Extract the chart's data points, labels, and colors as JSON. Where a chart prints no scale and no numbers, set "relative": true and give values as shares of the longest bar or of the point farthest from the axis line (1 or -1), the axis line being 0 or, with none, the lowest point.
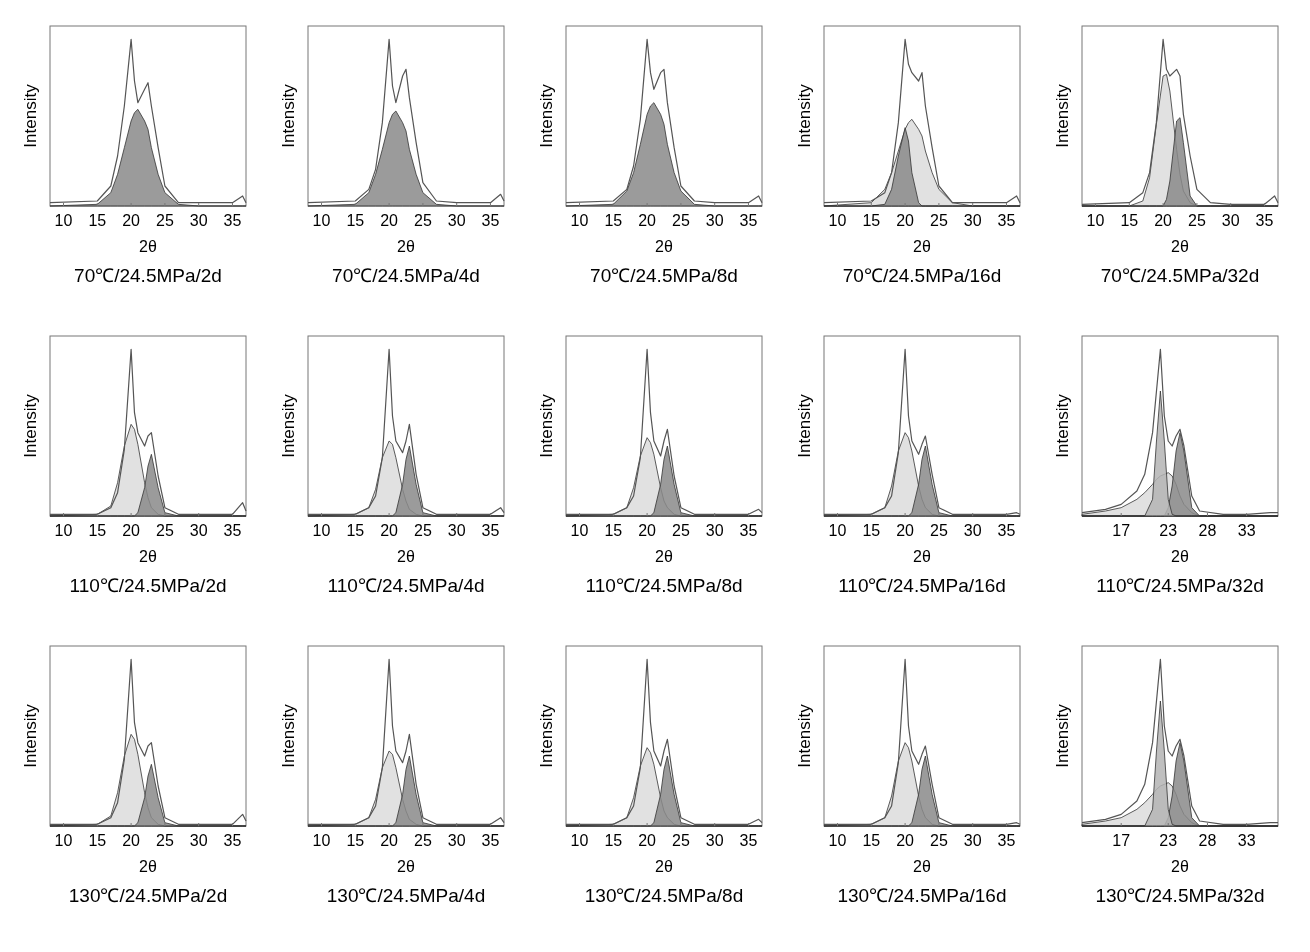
{
  "chart_data": [
    {
      "type": "line",
      "relative": true,
      "title": "70℃/24.5MPa/2d",
      "xlabel": "2θ",
      "ylabel": "Intensity",
      "xlim": [
        8,
        37
      ],
      "xticks": [
        10,
        15,
        20,
        25,
        30,
        35
      ],
      "x": [
        8,
        15,
        17,
        18,
        19,
        20,
        20.5,
        21,
        22,
        22.5,
        23,
        24,
        25,
        27,
        30,
        35,
        36.5,
        37
      ],
      "series": [
        {
          "type": "area",
          "color": "#8a8a8a",
          "values": [
            0,
            0.01,
            0.08,
            0.19,
            0.35,
            0.51,
            0.56,
            0.58,
            0.51,
            0.46,
            0.35,
            0.19,
            0.08,
            0.01,
            0,
            0,
            0,
            0
          ]
        },
        {
          "color": "#555555",
          "values": [
            0.02,
            0.03,
            0.12,
            0.3,
            0.6,
            1.0,
            0.75,
            0.62,
            0.7,
            0.74,
            0.6,
            0.35,
            0.12,
            0.02,
            0.02,
            0.02,
            0.06,
            0.02
          ]
        }
      ]
    },
    {
      "type": "line",
      "relative": true,
      "title": "70℃/24.5MPa/4d",
      "xlabel": "2θ",
      "ylabel": "Intensity",
      "xlim": [
        8,
        37
      ],
      "xticks": [
        10,
        15,
        20,
        25,
        30,
        35
      ],
      "x": [
        8,
        15,
        17,
        18,
        19,
        20,
        20.5,
        21,
        22,
        22.5,
        23,
        24,
        25,
        27,
        30,
        35,
        36.5,
        37
      ],
      "series": [
        {
          "type": "area",
          "color": "#8a8a8a",
          "values": [
            0,
            0.01,
            0.08,
            0.19,
            0.34,
            0.5,
            0.55,
            0.57,
            0.5,
            0.45,
            0.34,
            0.19,
            0.08,
            0.01,
            0,
            0,
            0,
            0
          ]
        },
        {
          "color": "#555555",
          "values": [
            0.02,
            0.03,
            0.1,
            0.22,
            0.5,
            1.0,
            0.72,
            0.62,
            0.78,
            0.82,
            0.65,
            0.38,
            0.14,
            0.03,
            0.02,
            0.02,
            0.07,
            0.03
          ]
        }
      ]
    },
    {
      "type": "line",
      "relative": true,
      "title": "70℃/24.5MPa/8d",
      "xlabel": "2θ",
      "ylabel": "Intensity",
      "xlim": [
        8,
        37
      ],
      "xticks": [
        10,
        15,
        20,
        25,
        30,
        35
      ],
      "x": [
        8,
        15,
        17,
        18,
        19,
        20,
        20.5,
        21,
        22,
        22.5,
        23,
        24,
        25,
        27,
        30,
        35,
        36.5,
        37
      ],
      "series": [
        {
          "type": "area",
          "color": "#8a8a8a",
          "values": [
            0,
            0.01,
            0.09,
            0.2,
            0.37,
            0.55,
            0.6,
            0.62,
            0.55,
            0.49,
            0.37,
            0.2,
            0.09,
            0.01,
            0,
            0,
            0,
            0
          ]
        },
        {
          "color": "#555555",
          "values": [
            0.02,
            0.03,
            0.1,
            0.24,
            0.52,
            1.0,
            0.8,
            0.7,
            0.8,
            0.82,
            0.62,
            0.35,
            0.12,
            0.03,
            0.02,
            0.02,
            0.06,
            0.02
          ]
        }
      ]
    },
    {
      "type": "line",
      "relative": true,
      "title": "70℃/24.5MPa/16d",
      "xlabel": "2θ",
      "ylabel": "Intensity",
      "xlim": [
        8,
        37
      ],
      "xticks": [
        10,
        15,
        20,
        25,
        30,
        35
      ],
      "x": [
        8,
        15,
        17,
        18,
        19,
        20,
        20.5,
        21,
        22,
        22.5,
        23,
        24,
        25,
        27,
        30,
        35,
        36.5,
        37
      ],
      "series": [
        {
          "type": "area",
          "color": "#dcdcdc",
          "values": [
            0,
            0.02,
            0.1,
            0.2,
            0.33,
            0.46,
            0.5,
            0.52,
            0.46,
            0.42,
            0.33,
            0.2,
            0.1,
            0.02,
            0,
            0,
            0,
            0
          ]
        },
        {
          "type": "area",
          "color": "#8a8a8a",
          "values": [
            0,
            0,
            0.01,
            0.1,
            0.3,
            0.47,
            0.39,
            0.2,
            0.02,
            0,
            0,
            0,
            0,
            0,
            0,
            0,
            0,
            0
          ]
        },
        {
          "color": "#555555",
          "values": [
            0.02,
            0.03,
            0.08,
            0.2,
            0.5,
            1.0,
            0.85,
            0.8,
            0.75,
            0.8,
            0.6,
            0.35,
            0.12,
            0.02,
            0.02,
            0.02,
            0.06,
            0.02
          ]
        }
      ]
    },
    {
      "type": "line",
      "relative": true,
      "title": "70℃/24.5MPa/32d",
      "xlabel": "2θ",
      "ylabel": "Intensity",
      "xlim": [
        8,
        37
      ],
      "xticks": [
        10,
        15,
        20,
        25,
        30,
        35
      ],
      "x": [
        8,
        15,
        17,
        18,
        19,
        20,
        20.5,
        21,
        22,
        22.5,
        23,
        24,
        25,
        27,
        30,
        35,
        36.5,
        37
      ],
      "series": [
        {
          "type": "area",
          "color": "#dcdcdc",
          "values": [
            0,
            0,
            0.03,
            0.17,
            0.49,
            0.78,
            0.79,
            0.69,
            0.34,
            0.19,
            0.09,
            0.02,
            0,
            0,
            0,
            0,
            0,
            0
          ]
        },
        {
          "type": "area",
          "color": "#8a8a8a",
          "values": [
            0,
            0,
            0,
            0,
            0,
            0,
            0.04,
            0.15,
            0.51,
            0.53,
            0.38,
            0.06,
            0,
            0,
            0,
            0,
            0,
            0
          ]
        },
        {
          "color": "#555555",
          "values": [
            0.01,
            0.02,
            0.08,
            0.2,
            0.5,
            1.0,
            0.82,
            0.78,
            0.82,
            0.78,
            0.55,
            0.3,
            0.1,
            0.02,
            0.01,
            0.01,
            0.06,
            0.02
          ]
        }
      ]
    },
    {
      "type": "line",
      "relative": true,
      "title": "110℃/24.5MPa/2d",
      "xlabel": "2θ",
      "ylabel": "Intensity",
      "xlim": [
        8,
        37
      ],
      "xticks": [
        10,
        15,
        20,
        25,
        30,
        35
      ],
      "x": [
        8,
        15,
        17,
        18,
        19,
        20,
        20.5,
        21,
        22,
        22.5,
        23,
        24,
        25,
        27,
        30,
        35,
        36.5,
        37
      ],
      "series": [
        {
          "type": "area",
          "color": "#dcdcdc",
          "values": [
            0,
            0.01,
            0.06,
            0.2,
            0.42,
            0.55,
            0.52,
            0.43,
            0.2,
            0.11,
            0.05,
            0.01,
            0,
            0,
            0,
            0,
            0,
            0
          ]
        },
        {
          "type": "area",
          "color": "#8a8a8a",
          "values": [
            0,
            0,
            0,
            0,
            0,
            0,
            0,
            0.02,
            0.17,
            0.3,
            0.37,
            0.17,
            0.02,
            0,
            0,
            0,
            0,
            0
          ]
        },
        {
          "color": "#555555",
          "values": [
            0.01,
            0.01,
            0.05,
            0.14,
            0.4,
            1.0,
            0.62,
            0.5,
            0.42,
            0.48,
            0.5,
            0.24,
            0.05,
            0.01,
            0.01,
            0.01,
            0.08,
            0.03
          ]
        }
      ]
    },
    {
      "type": "line",
      "relative": true,
      "title": "110℃/24.5MPa/4d",
      "xlabel": "2θ",
      "ylabel": "Intensity",
      "xlim": [
        8,
        37
      ],
      "xticks": [
        10,
        15,
        20,
        25,
        30,
        35
      ],
      "x": [
        8,
        15,
        17,
        18,
        19,
        20,
        20.5,
        21,
        22,
        22.5,
        23,
        24,
        25,
        27,
        30,
        35,
        36.5,
        37
      ],
      "series": [
        {
          "type": "area",
          "color": "#dcdcdc",
          "values": [
            0,
            0.01,
            0.05,
            0.16,
            0.35,
            0.45,
            0.43,
            0.35,
            0.16,
            0.09,
            0.04,
            0.01,
            0,
            0,
            0,
            0,
            0,
            0
          ]
        },
        {
          "type": "area",
          "color": "#8a8a8a",
          "values": [
            0,
            0,
            0,
            0,
            0,
            0,
            0,
            0.02,
            0.19,
            0.34,
            0.42,
            0.19,
            0.02,
            0,
            0,
            0,
            0,
            0
          ]
        },
        {
          "color": "#555555",
          "values": [
            0.01,
            0.01,
            0.05,
            0.12,
            0.35,
            1.0,
            0.6,
            0.45,
            0.38,
            0.45,
            0.55,
            0.25,
            0.05,
            0.01,
            0.01,
            0.01,
            0.05,
            0.02
          ]
        }
      ]
    },
    {
      "type": "line",
      "relative": true,
      "title": "110℃/24.5MPa/8d",
      "xlabel": "2θ",
      "ylabel": "Intensity",
      "xlim": [
        8,
        37
      ],
      "xticks": [
        10,
        15,
        20,
        25,
        30,
        35
      ],
      "x": [
        8,
        15,
        17,
        18,
        19,
        20,
        20.5,
        21,
        22,
        22.5,
        23,
        24,
        25,
        27,
        30,
        35,
        36.5,
        37
      ],
      "series": [
        {
          "type": "area",
          "color": "#dcdcdc",
          "values": [
            0,
            0.01,
            0.05,
            0.17,
            0.36,
            0.47,
            0.44,
            0.37,
            0.17,
            0.09,
            0.05,
            0.01,
            0,
            0,
            0,
            0,
            0,
            0
          ]
        },
        {
          "type": "area",
          "color": "#8a8a8a",
          "values": [
            0,
            0,
            0,
            0,
            0,
            0,
            0,
            0.02,
            0.19,
            0.34,
            0.42,
            0.19,
            0.02,
            0,
            0,
            0,
            0,
            0
          ]
        },
        {
          "color": "#555555",
          "values": [
            0.01,
            0.01,
            0.05,
            0.12,
            0.35,
            1.0,
            0.62,
            0.45,
            0.36,
            0.45,
            0.52,
            0.24,
            0.05,
            0.01,
            0.01,
            0.01,
            0.04,
            0.02
          ]
        }
      ]
    },
    {
      "type": "line",
      "relative": true,
      "title": "110℃/24.5MPa/16d",
      "xlabel": "2θ",
      "ylabel": "Intensity",
      "xlim": [
        8,
        37
      ],
      "xticks": [
        10,
        15,
        20,
        25,
        30,
        35
      ],
      "x": [
        8,
        15,
        17,
        18,
        19,
        20,
        20.5,
        21,
        22,
        22.5,
        23,
        24,
        25,
        27,
        30,
        35,
        36.5,
        37
      ],
      "series": [
        {
          "type": "area",
          "color": "#dcdcdc",
          "values": [
            0,
            0.01,
            0.05,
            0.18,
            0.39,
            0.5,
            0.47,
            0.39,
            0.18,
            0.1,
            0.05,
            0.01,
            0,
            0,
            0,
            0,
            0,
            0
          ]
        },
        {
          "type": "area",
          "color": "#8a8a8a",
          "values": [
            0,
            0,
            0,
            0,
            0,
            0,
            0,
            0.02,
            0.19,
            0.34,
            0.42,
            0.19,
            0.02,
            0,
            0,
            0,
            0,
            0
          ]
        },
        {
          "color": "#555555",
          "values": [
            0.01,
            0.01,
            0.05,
            0.12,
            0.38,
            1.0,
            0.6,
            0.45,
            0.37,
            0.43,
            0.48,
            0.25,
            0.05,
            0.01,
            0.01,
            0.01,
            0.02,
            0.01
          ]
        }
      ]
    },
    {
      "type": "line",
      "relative": true,
      "title": "110℃/24.5MPa/32d",
      "xlabel": "2θ",
      "ylabel": "Intensity",
      "xlim": [
        12,
        37
      ],
      "xticks": [
        17,
        23,
        28,
        33
      ],
      "x": [
        12,
        15,
        17,
        19,
        20,
        21,
        21.5,
        22,
        22.5,
        23,
        23.5,
        24,
        24.5,
        25,
        26,
        27,
        30,
        33,
        36,
        37
      ],
      "series": [
        {
          "type": "area",
          "color": "#dcdcdc",
          "values": [
            0.01,
            0.03,
            0.05,
            0.1,
            0.14,
            0.19,
            0.22,
            0.24,
            0.25,
            0.26,
            0.24,
            0.19,
            0.12,
            0.07,
            0.02,
            0,
            0,
            0,
            0,
            0
          ]
        },
        {
          "type": "area",
          "color": "#8a8a8a",
          "values": [
            0,
            0,
            0,
            0,
            0,
            0,
            0,
            0,
            0,
            0.05,
            0.18,
            0.39,
            0.5,
            0.39,
            0.05,
            0,
            0,
            0,
            0,
            0
          ]
        },
        {
          "type": "area",
          "color": "#b4b4b4",
          "values": [
            0,
            0,
            0,
            0,
            0,
            0.1,
            0.45,
            0.75,
            0.45,
            0.1,
            0.01,
            0,
            0,
            0,
            0,
            0,
            0,
            0,
            0,
            0
          ]
        },
        {
          "color": "#555555",
          "values": [
            0.02,
            0.04,
            0.07,
            0.15,
            0.25,
            0.5,
            0.75,
            1.0,
            0.6,
            0.45,
            0.42,
            0.48,
            0.52,
            0.42,
            0.12,
            0.03,
            0.01,
            0.01,
            0.02,
            0.02
          ]
        }
      ]
    },
    {
      "type": "line",
      "relative": true,
      "title": "130℃/24.5MPa/2d",
      "xlabel": "2θ",
      "ylabel": "Intensity",
      "xlim": [
        8,
        37
      ],
      "xticks": [
        10,
        15,
        20,
        25,
        30,
        35
      ],
      "x": [
        8,
        15,
        17,
        18,
        19,
        20,
        20.5,
        21,
        22,
        22.5,
        23,
        24,
        25,
        27,
        30,
        35,
        36.5,
        37
      ],
      "series": [
        {
          "type": "area",
          "color": "#dcdcdc",
          "values": [
            0,
            0.01,
            0.06,
            0.2,
            0.42,
            0.55,
            0.52,
            0.43,
            0.2,
            0.11,
            0.05,
            0.01,
            0,
            0,
            0,
            0,
            0,
            0
          ]
        },
        {
          "type": "area",
          "color": "#8a8a8a",
          "values": [
            0,
            0,
            0,
            0,
            0,
            0,
            0,
            0.02,
            0.17,
            0.3,
            0.37,
            0.17,
            0.02,
            0,
            0,
            0,
            0,
            0
          ]
        },
        {
          "color": "#555555",
          "values": [
            0.01,
            0.01,
            0.05,
            0.14,
            0.4,
            1.0,
            0.62,
            0.5,
            0.42,
            0.48,
            0.5,
            0.24,
            0.05,
            0.01,
            0.01,
            0.01,
            0.07,
            0.03
          ]
        }
      ]
    },
    {
      "type": "line",
      "relative": true,
      "title": "130℃/24.5MPa/4d",
      "xlabel": "2θ",
      "ylabel": "Intensity",
      "xlim": [
        8,
        37
      ],
      "xticks": [
        10,
        15,
        20,
        25,
        30,
        35
      ],
      "x": [
        8,
        15,
        17,
        18,
        19,
        20,
        20.5,
        21,
        22,
        22.5,
        23,
        24,
        25,
        27,
        30,
        35,
        36.5,
        37
      ],
      "series": [
        {
          "type": "area",
          "color": "#dcdcdc",
          "values": [
            0,
            0.01,
            0.05,
            0.16,
            0.35,
            0.45,
            0.43,
            0.35,
            0.16,
            0.09,
            0.04,
            0.01,
            0,
            0,
            0,
            0,
            0,
            0
          ]
        },
        {
          "type": "area",
          "color": "#8a8a8a",
          "values": [
            0,
            0,
            0,
            0,
            0,
            0,
            0,
            0.02,
            0.19,
            0.34,
            0.42,
            0.19,
            0.02,
            0,
            0,
            0,
            0,
            0
          ]
        },
        {
          "color": "#555555",
          "values": [
            0.01,
            0.01,
            0.05,
            0.12,
            0.35,
            1.0,
            0.6,
            0.45,
            0.38,
            0.45,
            0.55,
            0.25,
            0.05,
            0.01,
            0.01,
            0.01,
            0.05,
            0.02
          ]
        }
      ]
    },
    {
      "type": "line",
      "relative": true,
      "title": "130℃/24.5MPa/8d",
      "xlabel": "2θ",
      "ylabel": "Intensity",
      "xlim": [
        8,
        37
      ],
      "xticks": [
        10,
        15,
        20,
        25,
        30,
        35
      ],
      "x": [
        8,
        15,
        17,
        18,
        19,
        20,
        20.5,
        21,
        22,
        22.5,
        23,
        24,
        25,
        27,
        30,
        35,
        36.5,
        37
      ],
      "series": [
        {
          "type": "area",
          "color": "#dcdcdc",
          "values": [
            0,
            0.01,
            0.05,
            0.17,
            0.36,
            0.47,
            0.44,
            0.37,
            0.17,
            0.09,
            0.05,
            0.01,
            0,
            0,
            0,
            0,
            0,
            0
          ]
        },
        {
          "type": "area",
          "color": "#8a8a8a",
          "values": [
            0,
            0,
            0,
            0,
            0,
            0,
            0,
            0.02,
            0.19,
            0.34,
            0.42,
            0.19,
            0.02,
            0,
            0,
            0,
            0,
            0
          ]
        },
        {
          "color": "#555555",
          "values": [
            0.01,
            0.01,
            0.05,
            0.12,
            0.35,
            1.0,
            0.62,
            0.45,
            0.36,
            0.45,
            0.52,
            0.24,
            0.05,
            0.01,
            0.01,
            0.01,
            0.04,
            0.02
          ]
        }
      ]
    },
    {
      "type": "line",
      "relative": true,
      "title": "130℃/24.5MPa/16d",
      "xlabel": "2θ",
      "ylabel": "Intensity",
      "xlim": [
        8,
        37
      ],
      "xticks": [
        10,
        15,
        20,
        25,
        30,
        35
      ],
      "x": [
        8,
        15,
        17,
        18,
        19,
        20,
        20.5,
        21,
        22,
        22.5,
        23,
        24,
        25,
        27,
        30,
        35,
        36.5,
        37
      ],
      "series": [
        {
          "type": "area",
          "color": "#dcdcdc",
          "values": [
            0,
            0.01,
            0.05,
            0.18,
            0.39,
            0.5,
            0.47,
            0.39,
            0.18,
            0.1,
            0.05,
            0.01,
            0,
            0,
            0,
            0,
            0,
            0
          ]
        },
        {
          "type": "area",
          "color": "#8a8a8a",
          "values": [
            0,
            0,
            0,
            0,
            0,
            0,
            0,
            0.02,
            0.19,
            0.34,
            0.42,
            0.19,
            0.02,
            0,
            0,
            0,
            0,
            0
          ]
        },
        {
          "color": "#555555",
          "values": [
            0.01,
            0.01,
            0.05,
            0.12,
            0.38,
            1.0,
            0.6,
            0.45,
            0.37,
            0.43,
            0.48,
            0.25,
            0.05,
            0.01,
            0.01,
            0.01,
            0.02,
            0.01
          ]
        }
      ]
    },
    {
      "type": "line",
      "relative": true,
      "title": "130℃/24.5MPa/32d",
      "xlabel": "2θ",
      "ylabel": "Intensity",
      "xlim": [
        12,
        37
      ],
      "xticks": [
        17,
        23,
        28,
        33
      ],
      "x": [
        12,
        15,
        17,
        19,
        20,
        21,
        21.5,
        22,
        22.5,
        23,
        23.5,
        24,
        24.5,
        25,
        26,
        27,
        30,
        33,
        36,
        37
      ],
      "series": [
        {
          "type": "area",
          "color": "#dcdcdc",
          "values": [
            0.01,
            0.03,
            0.05,
            0.1,
            0.14,
            0.19,
            0.22,
            0.24,
            0.25,
            0.26,
            0.24,
            0.19,
            0.12,
            0.07,
            0.02,
            0,
            0,
            0,
            0,
            0
          ]
        },
        {
          "type": "area",
          "color": "#8a8a8a",
          "values": [
            0,
            0,
            0,
            0,
            0,
            0,
            0,
            0,
            0,
            0.05,
            0.18,
            0.39,
            0.5,
            0.39,
            0.05,
            0,
            0,
            0,
            0,
            0
          ]
        },
        {
          "type": "area",
          "color": "#b4b4b4",
          "values": [
            0,
            0,
            0,
            0,
            0,
            0.1,
            0.45,
            0.75,
            0.45,
            0.1,
            0.01,
            0,
            0,
            0,
            0,
            0,
            0,
            0,
            0,
            0
          ]
        },
        {
          "color": "#555555",
          "values": [
            0.02,
            0.04,
            0.07,
            0.15,
            0.25,
            0.5,
            0.75,
            1.0,
            0.6,
            0.45,
            0.42,
            0.48,
            0.52,
            0.42,
            0.12,
            0.03,
            0.01,
            0.01,
            0.02,
            0.02
          ]
        }
      ]
    }
  ]
}
